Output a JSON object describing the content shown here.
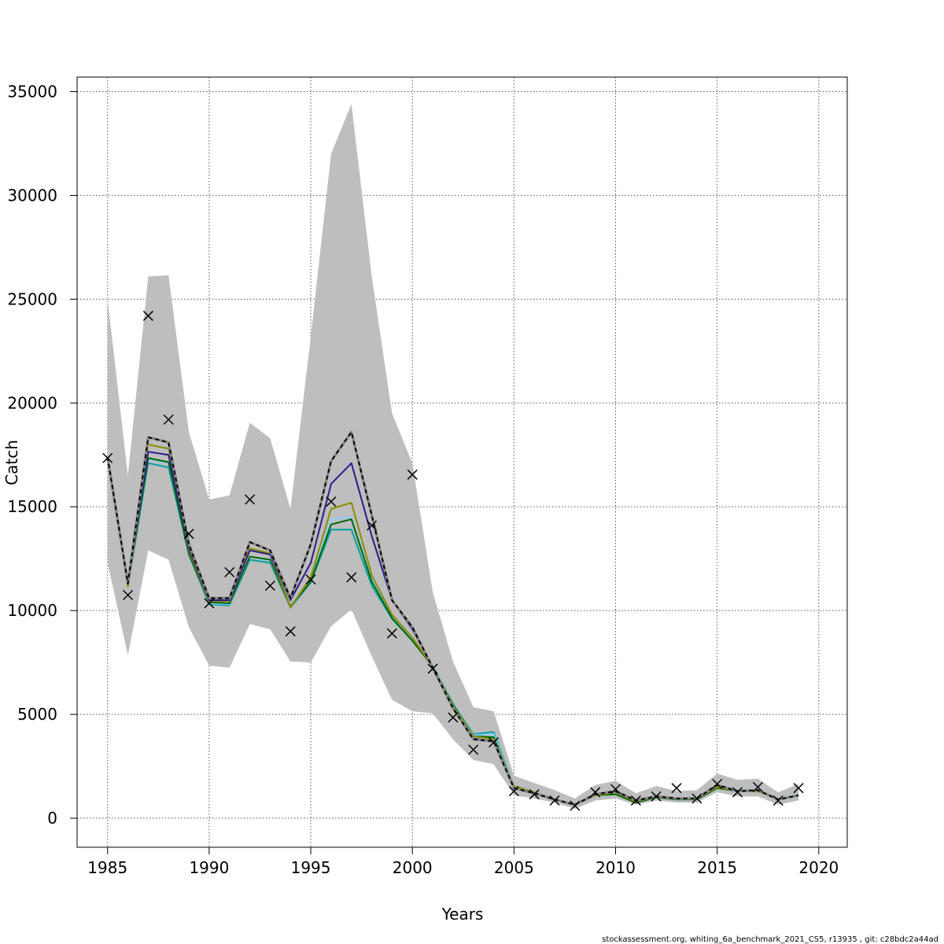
{
  "chart_data": {
    "type": "line",
    "xlabel": "Years",
    "ylabel": "Catch",
    "xlim": [
      1983.5,
      2021.4
    ],
    "ylim": [
      -1400,
      35700
    ],
    "xticks": [
      1985,
      1990,
      1995,
      2000,
      2005,
      2010,
      2015,
      2020
    ],
    "yticks": [
      0,
      5000,
      10000,
      15000,
      20000,
      25000,
      30000,
      35000
    ],
    "grid": true,
    "band_color": "#bebebe",
    "band_upper": [
      [
        1985,
        25000
      ],
      [
        1986,
        16500
      ],
      [
        1987,
        26100
      ],
      [
        1988,
        26150
      ],
      [
        1989,
        18600
      ],
      [
        1990,
        15350
      ],
      [
        1991,
        15550
      ],
      [
        1992,
        19050
      ],
      [
        1993,
        18300
      ],
      [
        1994,
        14900
      ],
      [
        1995,
        23200
      ],
      [
        1996,
        32000
      ],
      [
        1997,
        34400
      ],
      [
        1998,
        26100
      ],
      [
        1999,
        19500
      ],
      [
        2000,
        17100
      ],
      [
        2001,
        10900
      ],
      [
        2002,
        7550
      ],
      [
        2003,
        5350
      ],
      [
        2004,
        5150
      ],
      [
        2005,
        2050
      ],
      [
        2006,
        1700
      ],
      [
        2007,
        1350
      ],
      [
        2008,
        950
      ],
      [
        2009,
        1600
      ],
      [
        2010,
        1800
      ],
      [
        2011,
        1200
      ],
      [
        2012,
        1550
      ],
      [
        2013,
        1300
      ],
      [
        2014,
        1350
      ],
      [
        2015,
        2150
      ],
      [
        2016,
        1850
      ],
      [
        2017,
        1900
      ],
      [
        2018,
        1250
      ],
      [
        2019,
        1650
      ]
    ],
    "band_lower": [
      [
        1985,
        12300
      ],
      [
        1986,
        7850
      ],
      [
        1987,
        12900
      ],
      [
        1988,
        12450
      ],
      [
        1989,
        9200
      ],
      [
        1990,
        7350
      ],
      [
        1991,
        7250
      ],
      [
        1992,
        9350
      ],
      [
        1993,
        9100
      ],
      [
        1994,
        7550
      ],
      [
        1995,
        7500
      ],
      [
        1996,
        9250
      ],
      [
        1997,
        10050
      ],
      [
        1998,
        7800
      ],
      [
        1999,
        5700
      ],
      [
        2000,
        5150
      ],
      [
        2001,
        5050
      ],
      [
        2002,
        3800
      ],
      [
        2003,
        2800
      ],
      [
        2004,
        2600
      ],
      [
        2005,
        1100
      ],
      [
        2006,
        950
      ],
      [
        2007,
        750
      ],
      [
        2008,
        450
      ],
      [
        2009,
        850
      ],
      [
        2010,
        950
      ],
      [
        2011,
        650
      ],
      [
        2012,
        850
      ],
      [
        2013,
        750
      ],
      [
        2014,
        750
      ],
      [
        2015,
        1250
      ],
      [
        2016,
        1050
      ],
      [
        2017,
        1050
      ],
      [
        2018,
        650
      ],
      [
        2019,
        850
      ]
    ],
    "series": [
      {
        "color": "#00a0a0",
        "values": [
          [
            1985,
            17250
          ],
          [
            1986,
            11200
          ],
          [
            1987,
            17100
          ],
          [
            1988,
            16900
          ],
          [
            1989,
            12700
          ],
          [
            1990,
            10300
          ],
          [
            1991,
            10250
          ],
          [
            1992,
            12450
          ],
          [
            1993,
            12300
          ],
          [
            1994,
            10150
          ],
          [
            1995,
            11350
          ],
          [
            1996,
            13900
          ],
          [
            1997,
            13900
          ],
          [
            1998,
            11200
          ],
          [
            1999,
            9600
          ],
          [
            2000,
            8550
          ],
          [
            2001,
            7350
          ],
          [
            2002,
            5500
          ],
          [
            2003,
            4050
          ],
          [
            2004,
            4150
          ],
          [
            2005,
            1550
          ],
          [
            2006,
            1250
          ],
          [
            2007,
            900
          ],
          [
            2008,
            650
          ],
          [
            2009,
            1100
          ],
          [
            2010,
            1200
          ],
          [
            2011,
            800
          ],
          [
            2012,
            1050
          ],
          [
            2013,
            900
          ],
          [
            2014,
            950
          ],
          [
            2015,
            1500
          ],
          [
            2016,
            1350
          ],
          [
            2017,
            1350
          ],
          [
            2018,
            900
          ],
          [
            2019,
            1150
          ]
        ]
      },
      {
        "color": "#87cefa",
        "values": [
          [
            1985,
            17300
          ],
          [
            1986,
            11250
          ],
          [
            1987,
            17300
          ],
          [
            1988,
            17100
          ],
          [
            1989,
            12800
          ],
          [
            1990,
            10350
          ],
          [
            1991,
            10300
          ],
          [
            1992,
            12600
          ],
          [
            1993,
            12400
          ],
          [
            1994,
            10200
          ],
          [
            1995,
            11450
          ],
          [
            1996,
            14400
          ],
          [
            1997,
            14500
          ],
          [
            1998,
            11500
          ],
          [
            1999,
            9750
          ],
          [
            2000,
            8650
          ],
          [
            2001,
            7350
          ],
          [
            2002,
            5450
          ],
          [
            2003,
            4000
          ],
          [
            2004,
            4050
          ],
          [
            2005,
            1550
          ],
          [
            2006,
            1250
          ],
          [
            2007,
            900
          ],
          [
            2008,
            650
          ],
          [
            2009,
            1100
          ],
          [
            2010,
            1200
          ],
          [
            2011,
            800
          ],
          [
            2012,
            1050
          ],
          [
            2013,
            900
          ],
          [
            2014,
            950
          ],
          [
            2015,
            1550
          ],
          [
            2016,
            1350
          ],
          [
            2017,
            1350
          ],
          [
            2018,
            900
          ],
          [
            2019,
            1150
          ]
        ]
      },
      {
        "color": "#006400",
        "values": [
          [
            1985,
            17300
          ],
          [
            1986,
            11200
          ],
          [
            1987,
            17350
          ],
          [
            1988,
            17150
          ],
          [
            1989,
            12750
          ],
          [
            1990,
            10400
          ],
          [
            1991,
            10350
          ],
          [
            1992,
            12600
          ],
          [
            1993,
            12450
          ],
          [
            1994,
            10200
          ],
          [
            1995,
            11400
          ],
          [
            1996,
            14150
          ],
          [
            1997,
            14400
          ],
          [
            1998,
            11400
          ],
          [
            1999,
            9650
          ],
          [
            2000,
            8550
          ],
          [
            2001,
            7300
          ],
          [
            2002,
            5450
          ],
          [
            2003,
            3950
          ],
          [
            2004,
            3900
          ],
          [
            2005,
            1500
          ],
          [
            2006,
            1200
          ],
          [
            2007,
            900
          ],
          [
            2008,
            650
          ],
          [
            2009,
            1100
          ],
          [
            2010,
            1150
          ],
          [
            2011,
            750
          ],
          [
            2012,
            1000
          ],
          [
            2013,
            900
          ],
          [
            2014,
            900
          ],
          [
            2015,
            1450
          ],
          [
            2016,
            1300
          ],
          [
            2017,
            1300
          ],
          [
            2018,
            900
          ],
          [
            2019,
            1100
          ]
        ]
      },
      {
        "color": "#8b8b00",
        "values": [
          [
            1985,
            17350
          ],
          [
            1986,
            11150
          ],
          [
            1987,
            18000
          ],
          [
            1988,
            17800
          ],
          [
            1989,
            12900
          ],
          [
            1990,
            10450
          ],
          [
            1991,
            10450
          ],
          [
            1992,
            13000
          ],
          [
            1993,
            12750
          ],
          [
            1994,
            10150
          ],
          [
            1995,
            11600
          ],
          [
            1996,
            14900
          ],
          [
            1997,
            15200
          ],
          [
            1998,
            11700
          ],
          [
            1999,
            9800
          ],
          [
            2000,
            8700
          ],
          [
            2001,
            7300
          ],
          [
            2002,
            5400
          ],
          [
            2003,
            3950
          ],
          [
            2004,
            3800
          ],
          [
            2005,
            1550
          ],
          [
            2006,
            1250
          ],
          [
            2007,
            900
          ],
          [
            2008,
            650
          ],
          [
            2009,
            1100
          ],
          [
            2010,
            1250
          ],
          [
            2011,
            800
          ],
          [
            2012,
            1050
          ],
          [
            2013,
            950
          ],
          [
            2014,
            950
          ],
          [
            2015,
            1500
          ],
          [
            2016,
            1300
          ],
          [
            2017,
            1300
          ],
          [
            2018,
            900
          ],
          [
            2019,
            1100
          ]
        ]
      },
      {
        "color": "#2c1b8a",
        "values": [
          [
            1985,
            17400
          ],
          [
            1986,
            11300
          ],
          [
            1987,
            17650
          ],
          [
            1988,
            17500
          ],
          [
            1989,
            13000
          ],
          [
            1990,
            10500
          ],
          [
            1991,
            10500
          ],
          [
            1992,
            12900
          ],
          [
            1993,
            12700
          ],
          [
            1994,
            10500
          ],
          [
            1995,
            12300
          ],
          [
            1996,
            16100
          ],
          [
            1997,
            17100
          ],
          [
            1998,
            13600
          ],
          [
            1999,
            10500
          ],
          [
            2000,
            9100
          ],
          [
            2001,
            7250
          ],
          [
            2002,
            5300
          ],
          [
            2003,
            3850
          ],
          [
            2004,
            3700
          ],
          [
            2005,
            1450
          ],
          [
            2006,
            1200
          ],
          [
            2007,
            900
          ],
          [
            2008,
            650
          ],
          [
            2009,
            1150
          ],
          [
            2010,
            1300
          ],
          [
            2011,
            850
          ],
          [
            2012,
            1050
          ],
          [
            2013,
            950
          ],
          [
            2014,
            950
          ],
          [
            2015,
            1600
          ],
          [
            2016,
            1300
          ],
          [
            2017,
            1350
          ],
          [
            2018,
            900
          ],
          [
            2019,
            1100
          ]
        ]
      },
      {
        "color": "#000000",
        "dashed": true,
        "values": [
          [
            1985,
            17400
          ],
          [
            1986,
            11300
          ],
          [
            1987,
            18350
          ],
          [
            1988,
            18100
          ],
          [
            1989,
            13200
          ],
          [
            1990,
            10600
          ],
          [
            1991,
            10600
          ],
          [
            1992,
            13300
          ],
          [
            1993,
            12900
          ],
          [
            1994,
            10600
          ],
          [
            1995,
            13200
          ],
          [
            1996,
            17200
          ],
          [
            1997,
            18600
          ],
          [
            1998,
            14600
          ],
          [
            1999,
            10500
          ],
          [
            2000,
            9200
          ],
          [
            2001,
            7250
          ],
          [
            2002,
            5300
          ],
          [
            2003,
            3800
          ],
          [
            2004,
            3700
          ],
          [
            2005,
            1450
          ],
          [
            2006,
            1200
          ],
          [
            2007,
            900
          ],
          [
            2008,
            650
          ],
          [
            2009,
            1150
          ],
          [
            2010,
            1300
          ],
          [
            2011,
            850
          ],
          [
            2012,
            1050
          ],
          [
            2013,
            950
          ],
          [
            2014,
            950
          ],
          [
            2015,
            1600
          ],
          [
            2016,
            1300
          ],
          [
            2017,
            1350
          ],
          [
            2018,
            900
          ],
          [
            2019,
            1100
          ]
        ]
      }
    ],
    "observed": [
      [
        1985,
        17350
      ],
      [
        1986,
        10750
      ],
      [
        1987,
        24200
      ],
      [
        1988,
        19200
      ],
      [
        1989,
        13700
      ],
      [
        1990,
        10350
      ],
      [
        1991,
        11850
      ],
      [
        1992,
        15350
      ],
      [
        1993,
        11200
      ],
      [
        1994,
        9000
      ],
      [
        1995,
        11500
      ],
      [
        1996,
        15250
      ],
      [
        1997,
        11600
      ],
      [
        1998,
        14100
      ],
      [
        1999,
        8900
      ],
      [
        2000,
        16550
      ],
      [
        2001,
        7200
      ],
      [
        2002,
        4850
      ],
      [
        2003,
        3300
      ],
      [
        2004,
        3650
      ],
      [
        2005,
        1300
      ],
      [
        2006,
        1150
      ],
      [
        2007,
        850
      ],
      [
        2008,
        600
      ],
      [
        2009,
        1250
      ],
      [
        2010,
        1400
      ],
      [
        2011,
        850
      ],
      [
        2012,
        1050
      ],
      [
        2013,
        1450
      ],
      [
        2014,
        950
      ],
      [
        2015,
        1650
      ],
      [
        2016,
        1250
      ],
      [
        2017,
        1500
      ],
      [
        2018,
        850
      ],
      [
        2019,
        1450
      ]
    ]
  },
  "footer": "stockassessment.org, whiting_6a_benchmark_2021_CS5, r13935 , git: c28bdc2a44ad"
}
